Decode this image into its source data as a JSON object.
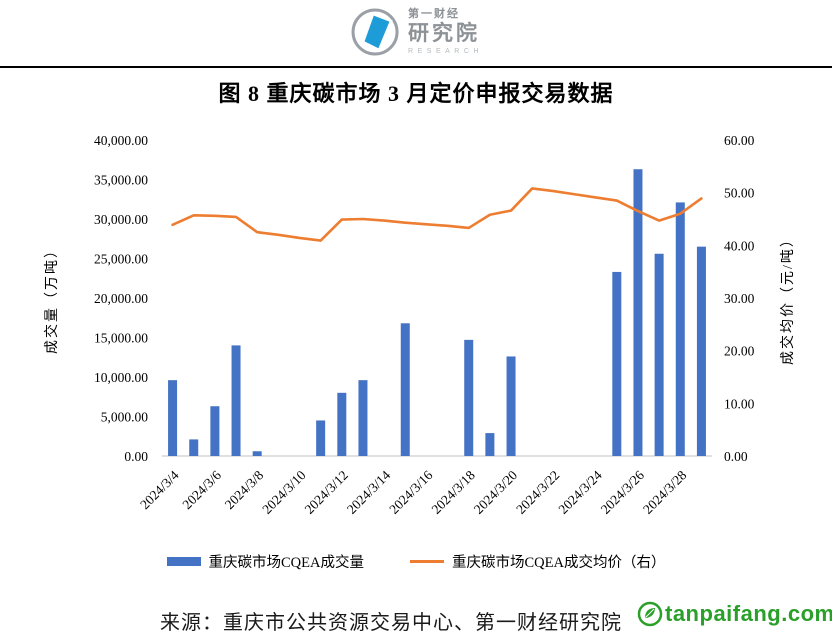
{
  "header": {
    "logo": {
      "cn_small": "第一财经",
      "cn_large": "研究院",
      "en": "RESEARCH"
    }
  },
  "title": "图 8  重庆碳市场 3 月定价申报交易数据",
  "chart_data": {
    "type": "bar+line (dual axis)",
    "categories": [
      "2024/3/4",
      "2024/3/5",
      "2024/3/6",
      "2024/3/7",
      "2024/3/8",
      "2024/3/9",
      "2024/3/10",
      "2024/3/11",
      "2024/3/12",
      "2024/3/13",
      "2024/3/14",
      "2024/3/15",
      "2024/3/16",
      "2024/3/17",
      "2024/3/18",
      "2024/3/19",
      "2024/3/20",
      "2024/3/21",
      "2024/3/22",
      "2024/3/23",
      "2024/3/24",
      "2024/3/25",
      "2024/3/26",
      "2024/3/27",
      "2024/3/28",
      "2024/3/29"
    ],
    "x_tick_labels": [
      "2024/3/4",
      "2024/3/6",
      "2024/3/8",
      "2024/3/10",
      "2024/3/12",
      "2024/3/14",
      "2024/3/16",
      "2024/3/18",
      "2024/3/20",
      "2024/3/22",
      "2024/3/24",
      "2024/3/26",
      "2024/3/28"
    ],
    "x_tick_every": 2,
    "series": [
      {
        "name": "重庆碳市场CQEA成交量",
        "type": "bar",
        "axis": "left",
        "color": "#4472C4",
        "values": [
          9600,
          2100,
          6300,
          14000,
          600,
          null,
          null,
          4500,
          8000,
          9600,
          null,
          16800,
          null,
          null,
          14700,
          2900,
          12600,
          null,
          null,
          null,
          null,
          23300,
          36300,
          25600,
          32100,
          26500
        ]
      },
      {
        "name": "重庆碳市场CQEA成交均价（右）",
        "type": "line",
        "axis": "right",
        "color": "#ED7D31",
        "values": [
          43.9,
          45.7,
          45.6,
          45.4,
          42.5,
          42.0,
          41.4,
          40.9,
          44.9,
          45.0,
          44.7,
          44.3,
          44.0,
          43.7,
          43.3,
          45.8,
          46.6,
          50.8,
          50.3,
          49.7,
          49.1,
          48.5,
          46.5,
          44.7,
          46.0,
          48.9
        ]
      }
    ],
    "left_axis": {
      "label": "成交量（万吨）",
      "min": 0,
      "max": 40000,
      "step": 5000,
      "tick_labels": [
        "0.00",
        "5,000.00",
        "10,000.00",
        "15,000.00",
        "20,000.00",
        "25,000.00",
        "30,000.00",
        "35,000.00",
        "40,000.00"
      ]
    },
    "right_axis": {
      "label": "成交均价（元/吨）",
      "min": 0,
      "max": 60,
      "step": 10,
      "tick_labels": [
        "0.00",
        "10.00",
        "20.00",
        "30.00",
        "40.00",
        "50.00",
        "60.00"
      ]
    },
    "grid": false,
    "legend_position": "bottom"
  },
  "footer": {
    "source": "来源：重庆市公共资源交易中心、第一财经研究院",
    "watermark": "tanpaifang.com"
  },
  "colors": {
    "bar": "#4472C4",
    "line": "#ED7D31",
    "axis_line": "#D6D6D6",
    "logo_blue": "#1E9CD7",
    "logo_gray": "#9AA0A6",
    "watermark_green": "#2AA02A"
  }
}
